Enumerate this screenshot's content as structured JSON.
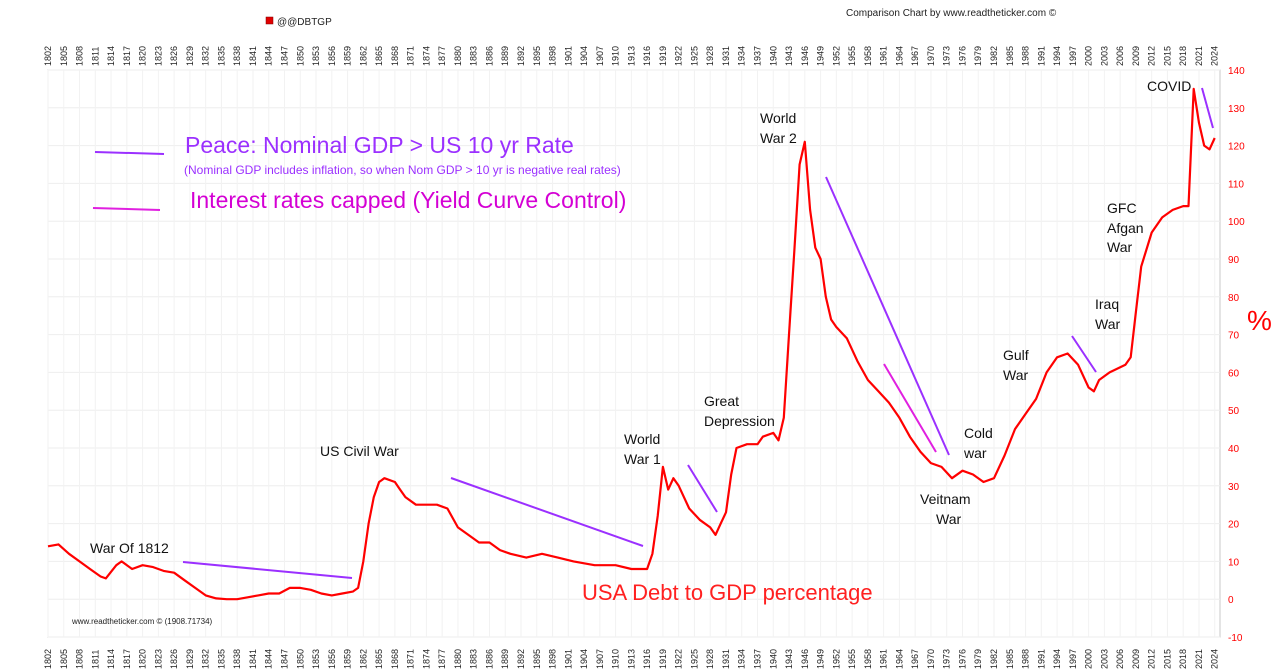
{
  "header": {
    "legend_label": "@@DBTGP",
    "legend_color": "#e00000",
    "credit_top": "Comparison Chart by www.readtheticker.com ©",
    "credit_bottom": "www.readtheticker.com © (1908.71734)"
  },
  "colors": {
    "series": "#ff0000",
    "peace_line": "#9b30ff",
    "ycc_line": "#e020e0",
    "annotation_text": "#111111",
    "peace_text": "#9b30ff",
    "ycc_text": "#d400d4",
    "title_text": "#ff2020",
    "axis_text": "#ff0000"
  },
  "legend_notes": {
    "peace": "Peace: Nominal GDP > US 10 yr Rate",
    "peace_sub": "(Nominal GDP includes inflation, so when Nom GDP > 10 yr is negative real rates)",
    "ycc": "Interest rates capped (Yield Curve Control)"
  },
  "chart_title": "USA Debt to GDP percentage",
  "y_unit": "%",
  "annotations": [
    {
      "id": "war-1812",
      "lines": [
        "War Of 1812"
      ]
    },
    {
      "id": "civil-war",
      "lines": [
        "US Civil War"
      ]
    },
    {
      "id": "ww1",
      "lines": [
        "World",
        "War 1"
      ]
    },
    {
      "id": "depression",
      "lines": [
        "Great",
        "Depression"
      ]
    },
    {
      "id": "ww2",
      "lines": [
        "World",
        "War 2"
      ]
    },
    {
      "id": "cold-war",
      "lines": [
        "Cold",
        "war"
      ]
    },
    {
      "id": "vietnam",
      "lines": [
        "Veitnam",
        "War"
      ]
    },
    {
      "id": "gulf",
      "lines": [
        "Gulf",
        "War"
      ]
    },
    {
      "id": "iraq",
      "lines": [
        "Iraq",
        "War"
      ]
    },
    {
      "id": "gfc",
      "lines": [
        "GFC",
        "Afgan",
        "War"
      ]
    },
    {
      "id": "covid",
      "lines": [
        "COVID"
      ]
    }
  ],
  "chart_data": {
    "type": "line",
    "y_axis_side": "right",
    "ylim": [
      -10,
      140
    ],
    "xlim": [
      1802,
      2025
    ],
    "y_ticks": [
      "-10",
      "0",
      "10",
      "20",
      "30",
      "40",
      "50",
      "60",
      "70",
      "80",
      "90",
      "100",
      "110",
      "120",
      "130",
      "140"
    ],
    "x_ticks": [
      "1802",
      "1805",
      "1808",
      "1811",
      "1814",
      "1817",
      "1820",
      "1823",
      "1826",
      "1829",
      "1832",
      "1835",
      "1838",
      "1841",
      "1844",
      "1847",
      "1850",
      "1853",
      "1856",
      "1859",
      "1862",
      "1865",
      "1868",
      "1871",
      "1874",
      "1877",
      "1880",
      "1883",
      "1886",
      "1889",
      "1892",
      "1895",
      "1898",
      "1901",
      "1904",
      "1907",
      "1910",
      "1913",
      "1916",
      "1919",
      "1922",
      "1925",
      "1928",
      "1931",
      "1934",
      "1937",
      "1940",
      "1943",
      "1946",
      "1949",
      "1952",
      "1955",
      "1958",
      "1961",
      "1964",
      "1967",
      "1970",
      "1973",
      "1976",
      "1979",
      "1982",
      "1985",
      "1988",
      "1991",
      "1994",
      "1997",
      "2000",
      "2003",
      "2006",
      "2009",
      "2012",
      "2015",
      "2018",
      "2021",
      "2024"
    ],
    "grid": true,
    "series": [
      {
        "name": "@@DBTGP",
        "points": [
          [
            1802,
            14
          ],
          [
            1804,
            14.5
          ],
          [
            1806,
            12
          ],
          [
            1808,
            10
          ],
          [
            1810,
            8
          ],
          [
            1812,
            6
          ],
          [
            1813,
            5.5
          ],
          [
            1815,
            9
          ],
          [
            1816,
            10
          ],
          [
            1818,
            8
          ],
          [
            1820,
            9
          ],
          [
            1822,
            8.5
          ],
          [
            1824,
            7.5
          ],
          [
            1826,
            7
          ],
          [
            1828,
            5
          ],
          [
            1830,
            3
          ],
          [
            1832,
            1
          ],
          [
            1834,
            0.2
          ],
          [
            1836,
            0
          ],
          [
            1838,
            0
          ],
          [
            1840,
            0.5
          ],
          [
            1842,
            1
          ],
          [
            1844,
            1.5
          ],
          [
            1846,
            1.5
          ],
          [
            1848,
            3
          ],
          [
            1850,
            3
          ],
          [
            1852,
            2.5
          ],
          [
            1854,
            1.5
          ],
          [
            1856,
            1
          ],
          [
            1858,
            1.5
          ],
          [
            1860,
            2
          ],
          [
            1861,
            3
          ],
          [
            1862,
            10
          ],
          [
            1863,
            20
          ],
          [
            1864,
            27
          ],
          [
            1865,
            31
          ],
          [
            1866,
            32
          ],
          [
            1868,
            31
          ],
          [
            1869,
            29
          ],
          [
            1870,
            27
          ],
          [
            1872,
            25
          ],
          [
            1876,
            25
          ],
          [
            1878,
            24
          ],
          [
            1880,
            19
          ],
          [
            1882,
            17
          ],
          [
            1884,
            15
          ],
          [
            1886,
            15
          ],
          [
            1888,
            13
          ],
          [
            1890,
            12
          ],
          [
            1893,
            11
          ],
          [
            1896,
            12
          ],
          [
            1899,
            11
          ],
          [
            1902,
            10
          ],
          [
            1906,
            9
          ],
          [
            1910,
            9
          ],
          [
            1913,
            8
          ],
          [
            1916,
            8
          ],
          [
            1917,
            12
          ],
          [
            1918,
            22
          ],
          [
            1919,
            35
          ],
          [
            1920,
            29
          ],
          [
            1921,
            32
          ],
          [
            1922,
            30
          ],
          [
            1923,
            27
          ],
          [
            1924,
            24
          ],
          [
            1926,
            21
          ],
          [
            1928,
            19
          ],
          [
            1929,
            17
          ],
          [
            1930,
            20
          ],
          [
            1931,
            23
          ],
          [
            1932,
            33
          ],
          [
            1933,
            40
          ],
          [
            1935,
            41
          ],
          [
            1937,
            41
          ],
          [
            1938,
            43
          ],
          [
            1940,
            44
          ],
          [
            1941,
            42
          ],
          [
            1942,
            48
          ],
          [
            1943,
            70
          ],
          [
            1944,
            92
          ],
          [
            1945,
            115
          ],
          [
            1946,
            121
          ],
          [
            1947,
            103
          ],
          [
            1948,
            93
          ],
          [
            1949,
            90
          ],
          [
            1950,
            80
          ],
          [
            1951,
            74
          ],
          [
            1952,
            72
          ],
          [
            1954,
            69
          ],
          [
            1956,
            63
          ],
          [
            1958,
            58
          ],
          [
            1960,
            55
          ],
          [
            1962,
            52
          ],
          [
            1964,
            48
          ],
          [
            1966,
            43
          ],
          [
            1968,
            39
          ],
          [
            1970,
            36
          ],
          [
            1972,
            35
          ],
          [
            1974,
            32
          ],
          [
            1976,
            34
          ],
          [
            1978,
            33
          ],
          [
            1980,
            31
          ],
          [
            1982,
            32
          ],
          [
            1984,
            38
          ],
          [
            1986,
            45
          ],
          [
            1988,
            49
          ],
          [
            1990,
            53
          ],
          [
            1992,
            60
          ],
          [
            1994,
            64
          ],
          [
            1996,
            65
          ],
          [
            1998,
            62
          ],
          [
            2000,
            56
          ],
          [
            2001,
            55
          ],
          [
            2002,
            58
          ],
          [
            2004,
            60
          ],
          [
            2007,
            62
          ],
          [
            2008,
            64
          ],
          [
            2009,
            76
          ],
          [
            2010,
            88
          ],
          [
            2012,
            97
          ],
          [
            2014,
            101
          ],
          [
            2016,
            103
          ],
          [
            2018,
            104
          ],
          [
            2019,
            104
          ],
          [
            2020,
            135
          ],
          [
            2021,
            126
          ],
          [
            2022,
            120
          ],
          [
            2023,
            119
          ],
          [
            2024,
            122
          ]
        ]
      }
    ]
  }
}
